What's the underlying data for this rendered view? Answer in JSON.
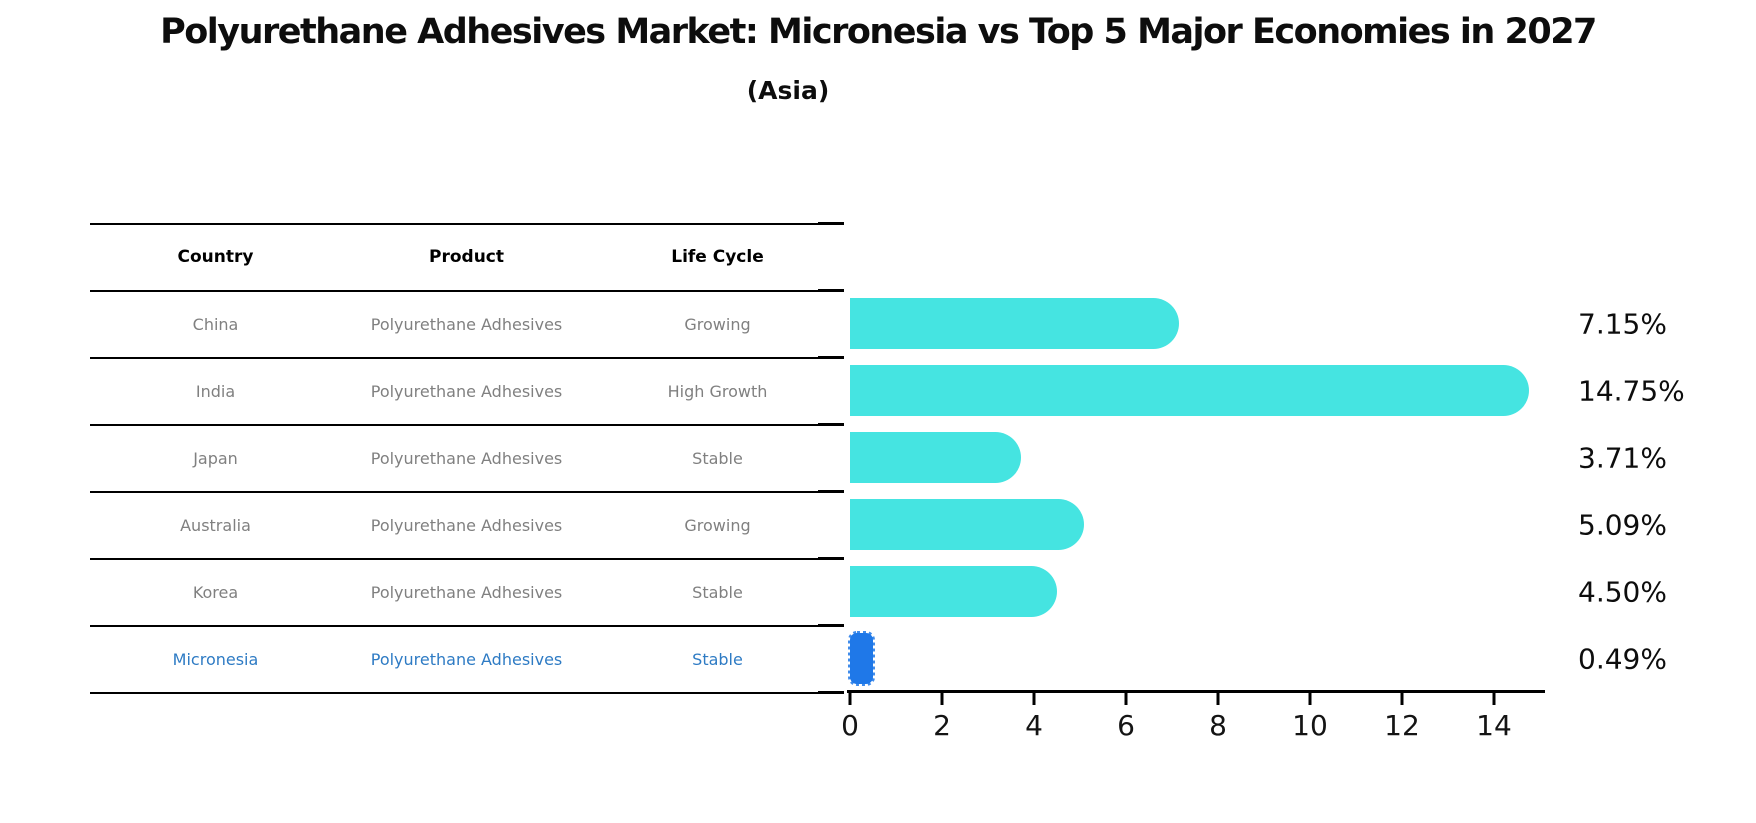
{
  "title": "Polyurethane Adhesives Market: Micronesia vs Top 5 Major Economies in 2027",
  "subtitle": "(Asia)",
  "table": {
    "headers": [
      "Country",
      "Product",
      "Life Cycle"
    ],
    "rows": [
      {
        "country": "China",
        "product": "Polyurethane Adhesives",
        "life_cycle": "Growing",
        "highlight": false
      },
      {
        "country": "India",
        "product": "Polyurethane Adhesives",
        "life_cycle": "High Growth",
        "highlight": false
      },
      {
        "country": "Japan",
        "product": "Polyurethane Adhesives",
        "life_cycle": "Stable",
        "highlight": false
      },
      {
        "country": "Australia",
        "product": "Polyurethane Adhesives",
        "life_cycle": "Growing",
        "highlight": false
      },
      {
        "country": "Korea",
        "product": "Polyurethane Adhesives",
        "life_cycle": "Stable",
        "highlight": false
      },
      {
        "country": "Micronesia",
        "product": "Polyurethane Adhesives",
        "life_cycle": "Stable",
        "highlight": true
      }
    ]
  },
  "chart_data": {
    "type": "bar",
    "orientation": "horizontal",
    "title": "Polyurethane Adhesives Market: Micronesia vs Top 5 Major Economies in 2027 (Asia)",
    "categories": [
      "China",
      "India",
      "Japan",
      "Australia",
      "Korea",
      "Micronesia"
    ],
    "values": [
      7.15,
      14.75,
      3.71,
      5.09,
      4.5,
      0.49
    ],
    "value_labels": [
      "7.15%",
      "14.75%",
      "3.71%",
      "5.09%",
      "4.50%",
      "0.49%"
    ],
    "xlim": [
      0,
      15
    ],
    "xticks": [
      0,
      2,
      4,
      6,
      8,
      10,
      12,
      14
    ],
    "grid": false,
    "legend": "none",
    "bar_color": "#45e4e1",
    "highlight_color": "#1f78e8",
    "highlight_index": 5
  },
  "colors": {
    "bar": "#45e4e1",
    "highlight_bar": "#1f78e8",
    "highlight_text": "#2e7bc4",
    "row_text": "#808080",
    "header_text": "#000000",
    "axis": "#000000"
  }
}
